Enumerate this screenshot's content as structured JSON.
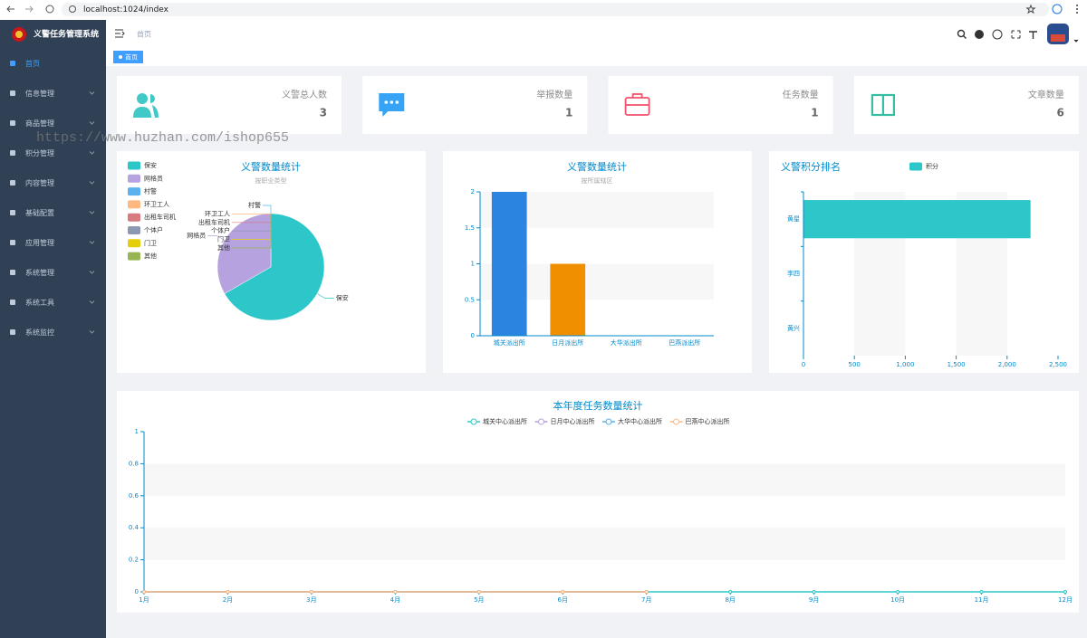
{
  "browser": {
    "url": "localhost:1024/index"
  },
  "sidebar": {
    "title": "义警任务管理系统",
    "menu": [
      "首页",
      "信息管理",
      "商品管理",
      "积分管理",
      "内容管理",
      "基础配置",
      "应用管理",
      "系统管理",
      "系统工具",
      "系统监控"
    ]
  },
  "watermark": "https://www.huzhan.com/ishop655",
  "navbar": {
    "breadcrumb": "首页",
    "tag": "首页"
  },
  "cards": [
    {
      "label": "义警总人数",
      "value": 3
    },
    {
      "label": "举报数量",
      "value": 1
    },
    {
      "label": "任务数量",
      "value": 1
    },
    {
      "label": "文章数量",
      "value": 6
    }
  ],
  "chart_data": [
    {
      "type": "pie",
      "title": "义警数量统计",
      "subtitle": "按职业类型",
      "categories": [
        "保安",
        "网格员",
        "村警",
        "环卫工人",
        "出租车司机",
        "个体户",
        "门卫",
        "其他"
      ],
      "values": [
        2,
        1,
        0,
        0,
        0,
        0,
        0,
        0
      ],
      "colors": [
        "#2ec7c9",
        "#b6a2de",
        "#5ab1ef",
        "#ffb980",
        "#d87a80",
        "#8d98b3",
        "#e5cf0d",
        "#97b552"
      ]
    },
    {
      "type": "bar",
      "title": "义警数量统计",
      "subtitle": "按所属辖区",
      "categories": [
        "城关派出所",
        "日月派出所",
        "大华派出所",
        "巴燕派出所"
      ],
      "values": [
        2,
        1,
        0,
        0
      ],
      "colors": [
        "#2a84e0",
        "#f09000",
        "#2a84e0",
        "#f09000"
      ],
      "ylim": [
        0,
        2
      ],
      "yticks": [
        0,
        0.5,
        1,
        1.5,
        2
      ]
    },
    {
      "type": "hbar",
      "title": "义警积分排名",
      "legend": "积分",
      "color": "#2ec7c9",
      "categories": [
        "黄星",
        "李四",
        "黄兴"
      ],
      "values": [
        2230,
        0,
        0
      ],
      "xlim": [
        0,
        2500
      ],
      "xticks": [
        0,
        500,
        {
          "value": 1000,
          "label": "1,000"
        },
        {
          "value": 1500,
          "label": "1,500"
        },
        {
          "value": 2000,
          "label": "2,000"
        },
        {
          "value": 2500,
          "label": "2,500"
        }
      ]
    },
    {
      "type": "line",
      "title": "本年度任务数量统计",
      "categories": [
        "1月",
        "2月",
        "3月",
        "4月",
        "5月",
        "6月",
        "7月",
        "8月",
        "9月",
        "10月",
        "11月",
        "12月"
      ],
      "series": [
        {
          "name": "城关中心派出所",
          "color": "#2ec7c9",
          "values": [
            0,
            0,
            0,
            0,
            0,
            0,
            0,
            0,
            0,
            0,
            0,
            0
          ]
        },
        {
          "name": "日月中心派出所",
          "color": "#b6a2de",
          "values": [
            0,
            0,
            0,
            0,
            0,
            0,
            0,
            null,
            null,
            null,
            null,
            null
          ]
        },
        {
          "name": "大华中心派出所",
          "color": "#5ab1ef",
          "values": [
            0,
            0,
            0,
            0,
            0,
            0,
            0,
            null,
            null,
            null,
            null,
            null
          ]
        },
        {
          "name": "巴燕中心派出所",
          "color": "#ffb980",
          "values": [
            0,
            0,
            0,
            0,
            0,
            0,
            0,
            null,
            null,
            null,
            null,
            null
          ]
        }
      ],
      "ylim": [
        0,
        1
      ],
      "yticks": [
        0,
        0.2,
        0.4,
        0.6,
        0.8,
        1
      ]
    }
  ]
}
